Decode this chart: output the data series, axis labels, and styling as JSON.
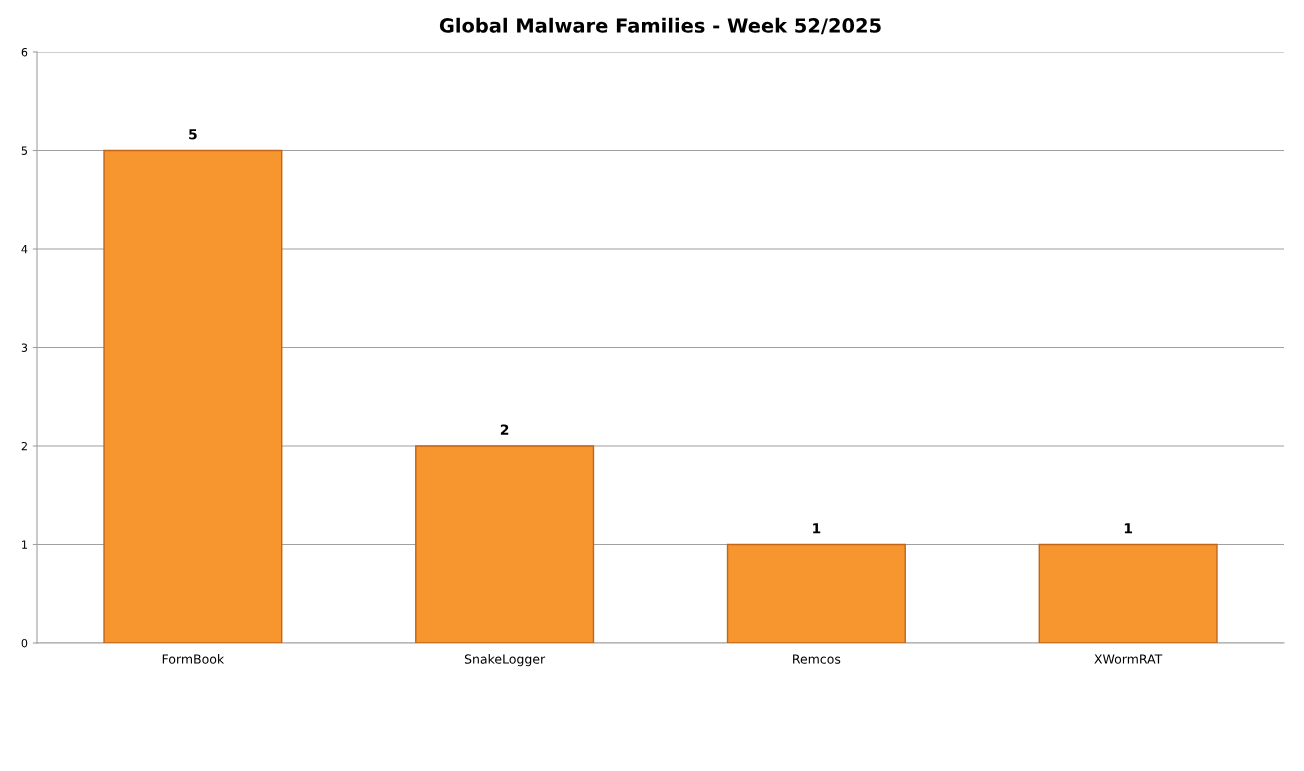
{
  "chart_data": {
    "type": "bar",
    "title": "Global Malware Families - Week 52/2025",
    "categories": [
      "FormBook",
      "SnakeLogger",
      "Remcos",
      "XWormRAT"
    ],
    "values": [
      5,
      2,
      1,
      1
    ],
    "color": "#f7962e",
    "ylim": [
      0,
      6
    ],
    "yticks": [
      0,
      1,
      2,
      3,
      4,
      5,
      6
    ],
    "grid": "y",
    "data_labels": true,
    "legend": false
  }
}
